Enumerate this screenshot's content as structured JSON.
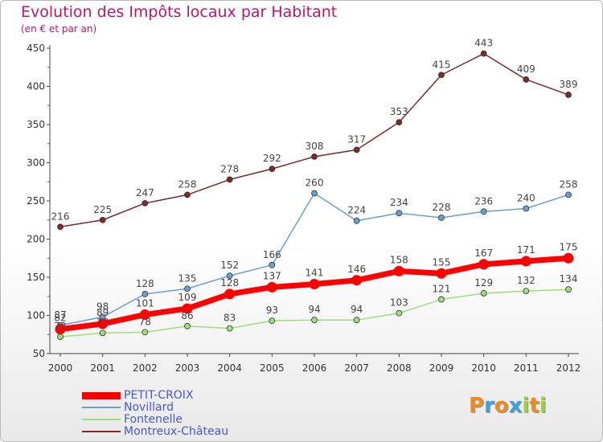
{
  "chart_data": {
    "type": "line",
    "title": "Evolution des Impôts locaux par Habitant",
    "subtitle": "(en € et par an)",
    "xlabel": "",
    "ylabel": "",
    "ylim": [
      50,
      450
    ],
    "yticks": [
      50,
      100,
      150,
      200,
      250,
      300,
      350,
      400,
      450
    ],
    "categories": [
      "2000",
      "2001",
      "2002",
      "2003",
      "2004",
      "2005",
      "2006",
      "2007",
      "2008",
      "2009",
      "2010",
      "2011",
      "2012"
    ],
    "grid": false,
    "legend_position": "bottom-left",
    "series": [
      {
        "name": "Fontenelle",
        "color": "#9be07a",
        "values": [
          72,
          77,
          78,
          86,
          83,
          93,
          94,
          94,
          103,
          121,
          129,
          132,
          134
        ]
      },
      {
        "name": "Novillard",
        "color": "#6b9fd0",
        "values": [
          87,
          98,
          128,
          135,
          152,
          166,
          260,
          224,
          234,
          228,
          236,
          240,
          258
        ]
      },
      {
        "name": "Montreux-Château",
        "color": "#7a2b2b",
        "values": [
          216,
          225,
          247,
          258,
          278,
          292,
          308,
          317,
          353,
          415,
          443,
          409,
          389
        ]
      },
      {
        "name": "PETIT-CROIX",
        "color": "#ff0000",
        "values": [
          82,
          89,
          101,
          109,
          128,
          137,
          141,
          146,
          158,
          155,
          167,
          171,
          175
        ]
      }
    ],
    "legend_order": [
      "PETIT-CROIX",
      "Novillard",
      "Fontenelle",
      "Montreux-Château"
    ]
  },
  "logo": {
    "letters": [
      "P",
      "r",
      "o",
      "x",
      "i",
      "t",
      "i"
    ],
    "colors": [
      "#f08a1c",
      "#3aa0e0",
      "#f08a1c",
      "#3aa0e0",
      "#9bd13c",
      "#f08a1c",
      "#9bd13c"
    ]
  }
}
